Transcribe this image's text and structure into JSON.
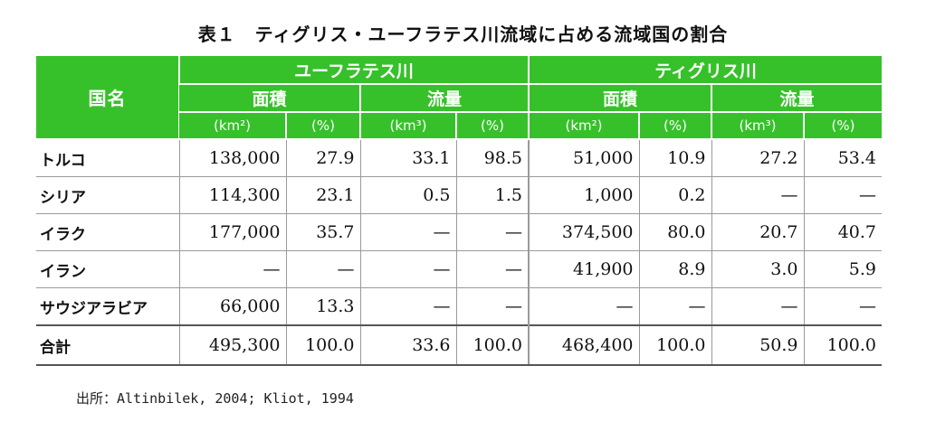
{
  "title": "表１　ティグリス・ユーフラテス川流域に占める流域国の割合",
  "header": {
    "country": "国名",
    "euphrates": "ユーフラテス川",
    "tigris": "ティグリス川",
    "area": "面積",
    "flow": "流量",
    "units": {
      "km2": "(km²)",
      "pct": "(%)",
      "km3": "(km³)"
    }
  },
  "rows": [
    {
      "name": "トルコ",
      "v": [
        "138,000",
        "27.9",
        "33.1",
        "98.5",
        "51,000",
        "10.9",
        "27.2",
        "53.4"
      ]
    },
    {
      "name": "シリア",
      "v": [
        "114,300",
        "23.1",
        "0.5",
        "1.5",
        "1,000",
        "0.2",
        "—",
        "—"
      ]
    },
    {
      "name": "イラク",
      "v": [
        "177,000",
        "35.7",
        "—",
        "—",
        "374,500",
        "80.0",
        "20.7",
        "40.7"
      ]
    },
    {
      "name": "イラン",
      "v": [
        "—",
        "—",
        "—",
        "—",
        "41,900",
        "8.9",
        "3.0",
        "5.9"
      ]
    },
    {
      "name": "サウジアラビア",
      "v": [
        "66,000",
        "13.3",
        "—",
        "—",
        "—",
        "—",
        "—",
        "—"
      ]
    }
  ],
  "total": {
    "name": "合計",
    "v": [
      "495,300",
      "100.0",
      "33.6",
      "100.0",
      "468,400",
      "100.0",
      "50.9",
      "100.0"
    ]
  },
  "source": "出所：Altinbilek, 2004; Kliot, 1994"
}
